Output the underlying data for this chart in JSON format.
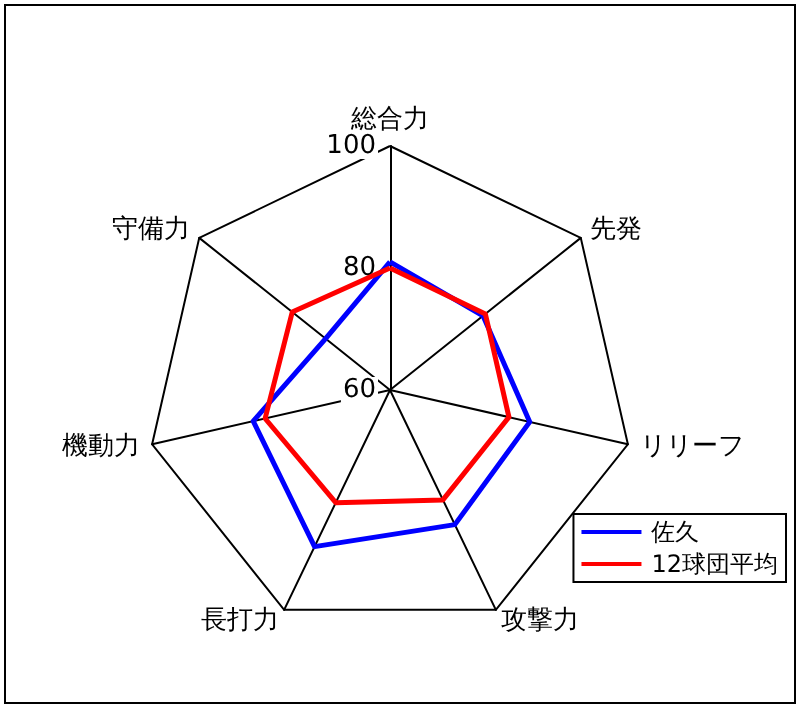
{
  "chart_data": {
    "type": "radar",
    "categories": [
      "総合力",
      "先発",
      "リリーフ",
      "攻撃力",
      "長打力",
      "機動力",
      "守備力"
    ],
    "series": [
      {
        "name": "佐久",
        "color": "#0000ff",
        "values": [
          81,
          79.5,
          83.5,
          84.5,
          88.5,
          83,
          73.5
        ]
      },
      {
        "name": "12球団平均",
        "color": "#ff0000",
        "values": [
          80,
          80,
          80,
          80,
          80.5,
          81,
          80.5
        ]
      }
    ],
    "ylim": [
      60,
      100
    ],
    "yticks": [
      60,
      80,
      100
    ],
    "legend": "bottom right",
    "marker": "none"
  }
}
